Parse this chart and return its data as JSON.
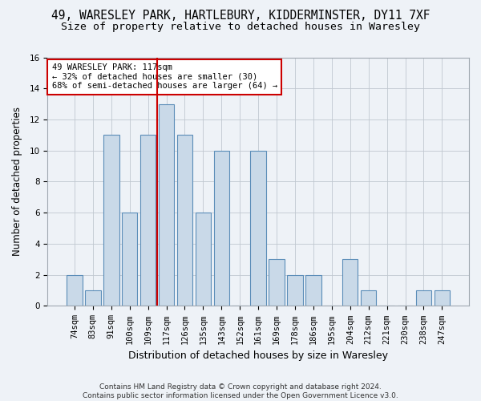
{
  "title1": "49, WARESLEY PARK, HARTLEBURY, KIDDERMINSTER, DY11 7XF",
  "title2": "Size of property relative to detached houses in Waresley",
  "xlabel": "Distribution of detached houses by size in Waresley",
  "ylabel": "Number of detached properties",
  "categories": [
    "74sqm",
    "83sqm",
    "91sqm",
    "100sqm",
    "109sqm",
    "117sqm",
    "126sqm",
    "135sqm",
    "143sqm",
    "152sqm",
    "161sqm",
    "169sqm",
    "178sqm",
    "186sqm",
    "195sqm",
    "204sqm",
    "212sqm",
    "221sqm",
    "230sqm",
    "238sqm",
    "247sqm"
  ],
  "values": [
    2,
    1,
    11,
    6,
    11,
    13,
    11,
    6,
    10,
    0,
    10,
    3,
    2,
    2,
    0,
    3,
    1,
    0,
    0,
    1,
    1
  ],
  "bar_color": "#c9d9e8",
  "bar_edge_color": "#5b8db8",
  "marker_index": 5,
  "marker_color": "#cc0000",
  "annotation_text": "49 WARESLEY PARK: 117sqm\n← 32% of detached houses are smaller (30)\n68% of semi-detached houses are larger (64) →",
  "annotation_box_color": "#ffffff",
  "annotation_box_edge": "#cc0000",
  "ylim": [
    0,
    16
  ],
  "yticks": [
    0,
    2,
    4,
    6,
    8,
    10,
    12,
    14,
    16
  ],
  "footer": "Contains HM Land Registry data © Crown copyright and database right 2024.\nContains public sector information licensed under the Open Government Licence v3.0.",
  "background_color": "#eef2f7",
  "plot_background": "#eef2f7",
  "title1_fontsize": 10.5,
  "title2_fontsize": 9.5,
  "xlabel_fontsize": 9,
  "ylabel_fontsize": 8.5,
  "tick_fontsize": 7.5,
  "footer_fontsize": 6.5
}
